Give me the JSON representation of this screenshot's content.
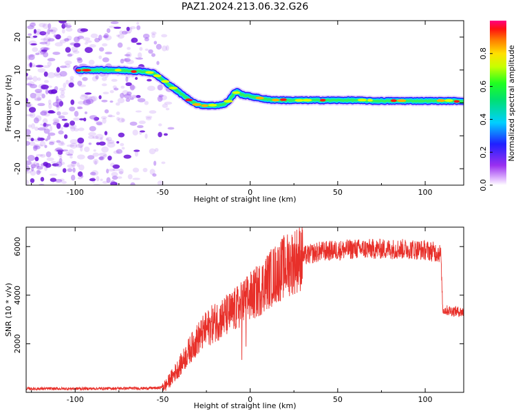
{
  "figure": {
    "title": "PAZ1.2024.213.06.32.G26"
  },
  "colors": {
    "snr_line": "#e8302a",
    "background": "#ffffff",
    "axis": "#000000",
    "noise": "#7b1fe0"
  },
  "chart_data": [
    {
      "type": "heatmap",
      "name": "spectrogram",
      "xlabel": "Height of straight line (km)",
      "ylabel": "Frequency (Hz)",
      "xlim": [
        -128,
        122
      ],
      "ylim": [
        -25,
        25
      ],
      "xticks": [
        -100,
        -50,
        0,
        50,
        100
      ],
      "yticks": [
        -20,
        -10,
        0,
        10,
        20
      ],
      "colorbar": {
        "label": "Normalized spectral amplitude",
        "range": [
          0,
          1
        ],
        "ticks": [
          0.0,
          0.2,
          0.4,
          0.6,
          0.8
        ],
        "tick_labels": [
          "0.0",
          "0.2",
          "0.4",
          "0.6",
          "0.8"
        ],
        "colormap": "rainbow"
      },
      "ridge": {
        "x": [
          -98,
          -90,
          -80,
          -70,
          -60,
          -55,
          -50,
          -45,
          -40,
          -35,
          -30,
          -25,
          -20,
          -15,
          -12,
          -9,
          -7,
          -5,
          0,
          5,
          10,
          20,
          30,
          40,
          50,
          60,
          70,
          80,
          90,
          100,
          110,
          122
        ],
        "y": [
          10,
          10,
          10,
          9.8,
          9.5,
          9.0,
          7.0,
          5.0,
          3.0,
          1.0,
          -0.5,
          -0.8,
          -0.8,
          -0.5,
          0.8,
          3.0,
          3.5,
          2.5,
          2.0,
          1.5,
          1.0,
          0.8,
          0.8,
          0.8,
          0.8,
          0.8,
          0.6,
          0.6,
          0.6,
          0.6,
          0.6,
          0.6
        ]
      },
      "noise_region": [
        -128,
        -55
      ]
    },
    {
      "type": "line",
      "name": "snr",
      "xlabel": "Height of straight line (km)",
      "ylabel": "SNR (10 * v/v)",
      "xlim": [
        -128,
        122
      ],
      "ylim": [
        0,
        6800
      ],
      "xticks": [
        -100,
        -50,
        0,
        50,
        100
      ],
      "yticks": [
        2000,
        4000,
        6000
      ],
      "envelope": {
        "x": [
          -128,
          -100,
          -80,
          -60,
          -52,
          -48,
          -45,
          -40,
          -35,
          -30,
          -25,
          -20,
          -15,
          -10,
          -5,
          0,
          5,
          10,
          15,
          20,
          25,
          30,
          40,
          50,
          60,
          70,
          80,
          90,
          100,
          108,
          109,
          110,
          115,
          122
        ],
        "y": [
          150,
          150,
          160,
          170,
          180,
          300,
          600,
          1100,
          1700,
          2200,
          2600,
          2900,
          3100,
          3300,
          3600,
          3900,
          4200,
          4600,
          4900,
          5200,
          5400,
          5600,
          5800,
          5850,
          5900,
          5900,
          5900,
          5900,
          5850,
          5750,
          5600,
          3400,
          3350,
          3300
        ]
      }
    }
  ]
}
